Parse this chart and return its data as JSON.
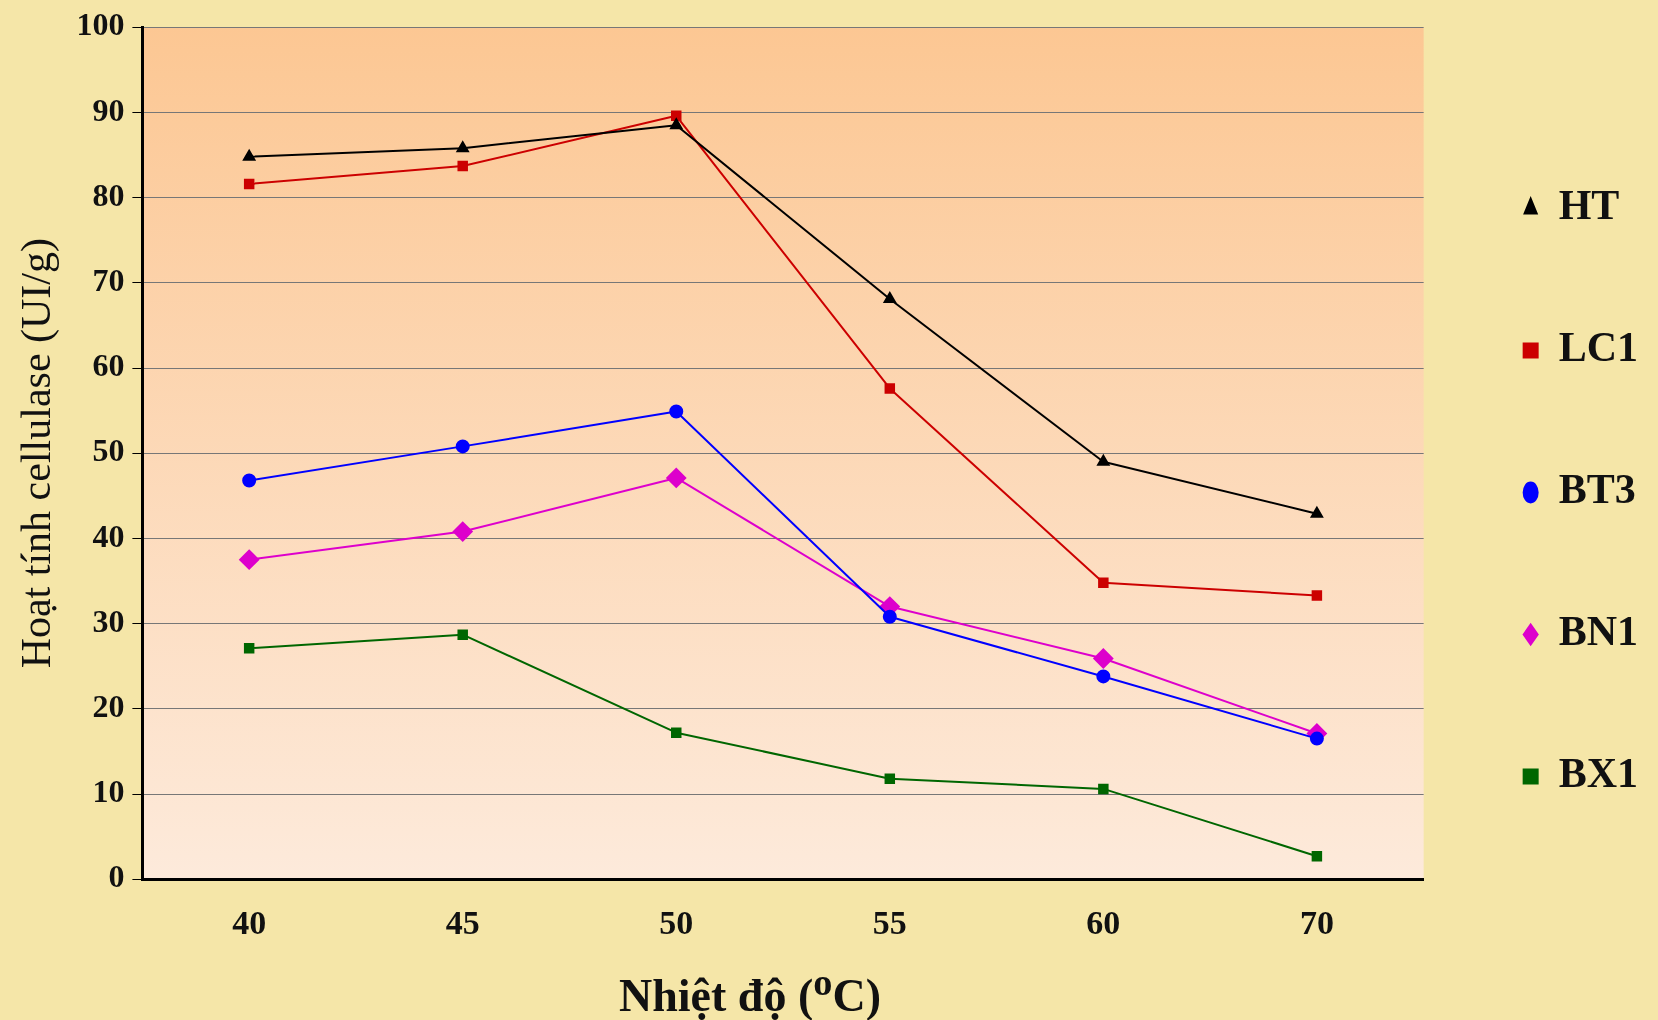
{
  "chart_data": {
    "type": "line",
    "xlabel": "Nhiệt độ ($^{o}$C)",
    "ylabel": "Hoạt tính cellulase (UI/g)",
    "categories": [
      "40",
      "45",
      "50",
      "55",
      "60",
      "70"
    ],
    "ylim": [
      0,
      100
    ],
    "yticks": [
      0,
      10,
      20,
      30,
      40,
      50,
      60,
      70,
      80,
      90,
      100
    ],
    "grid": "y",
    "legend": "right",
    "series": [
      {
        "name": "HT",
        "color": "#000000",
        "marker": "triangle",
        "values": [
          84.8,
          85.8,
          88.5,
          68.1,
          49,
          42.9
        ]
      },
      {
        "name": "LC1",
        "color": "#cc0000",
        "marker": "square",
        "values": [
          81.6,
          83.7,
          89.6,
          57.6,
          34.8,
          33.3
        ]
      },
      {
        "name": "BT3",
        "color": "#0000ff",
        "marker": "circle",
        "values": [
          46.8,
          50.8,
          54.9,
          30.8,
          23.8,
          16.5
        ]
      },
      {
        "name": "BN1",
        "color": "#dd00cc",
        "marker": "diamond",
        "values": [
          37.5,
          40.8,
          47.1,
          32,
          25.9,
          17.1
        ]
      },
      {
        "name": "BX1",
        "color": "#006600",
        "marker": "square",
        "values": [
          27.1,
          28.7,
          17.2,
          11.8,
          10.6,
          2.7
        ]
      }
    ]
  }
}
